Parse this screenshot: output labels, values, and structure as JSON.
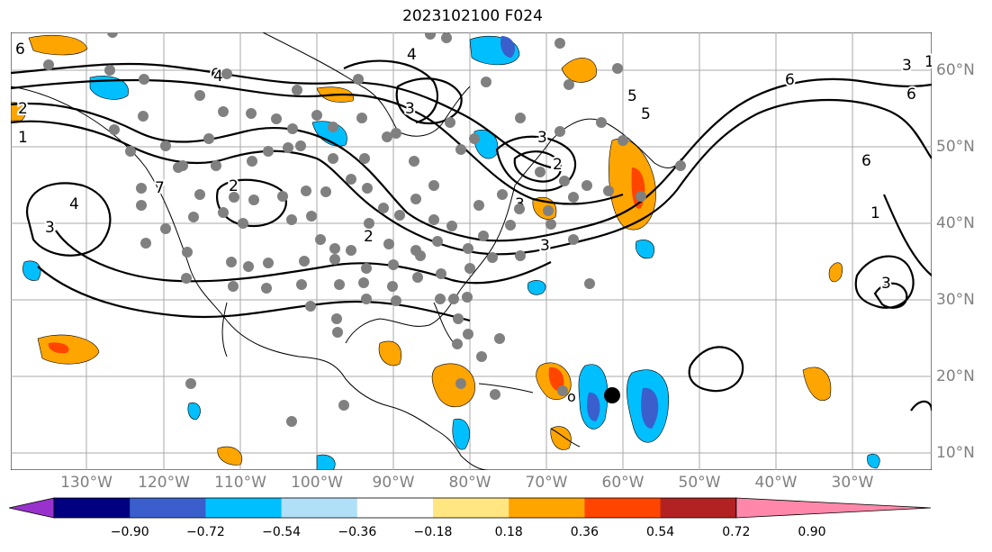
{
  "title": "2023102100 F024",
  "map": {
    "lon_labels": [
      "130°W",
      "120°W",
      "110°W",
      "100°W",
      "90°W",
      "80°W",
      "70°W",
      "60°W",
      "50°W",
      "40°W",
      "30°W"
    ],
    "lat_labels": [
      "60°N",
      "50°N",
      "40°N",
      "30°N",
      "20°N",
      "10°N"
    ],
    "contour_labels": [
      "6",
      "4",
      "3",
      "2",
      "1",
      "4",
      "3",
      "3",
      "3",
      "2",
      "3",
      "6",
      "3",
      "5",
      "6",
      "6",
      "7",
      "1",
      "5",
      "2",
      "6",
      "3",
      "4",
      "2",
      "1"
    ],
    "ocean_color": "#ffffff",
    "grid_color": "#aaaaaa",
    "coast_color": "#000000",
    "dot_color": "#808080"
  },
  "colorbar": {
    "ticks": [
      "−0.90",
      "−0.72",
      "−0.54",
      "−0.36",
      "−0.18",
      "0.18",
      "0.36",
      "0.54",
      "0.72",
      "0.90"
    ],
    "colors": [
      "#9932cc",
      "#000080",
      "#3a5fcd",
      "#00bfff",
      "#b0e0f8",
      "#ffffff",
      "#ffe680",
      "#ffa500",
      "#ff4500",
      "#b22222",
      "#ff88aa"
    ]
  }
}
